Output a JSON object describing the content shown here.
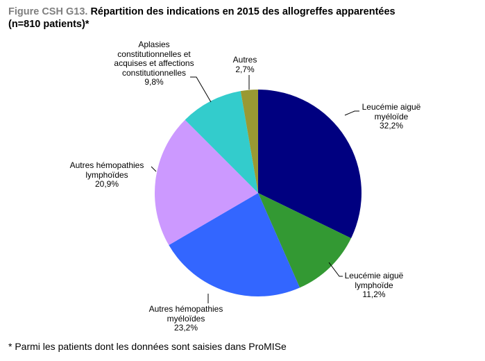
{
  "chart_data": {
    "type": "pie",
    "title_prefix": "Figure CSH G13.",
    "title": "Répartition des indications en 2015 des allogreffes apparentées",
    "subtitle": "(n=810 patients)*",
    "start": "top",
    "direction": "clockwise",
    "slices": [
      {
        "label_lines": [
          "Leucémie aiguë",
          "myéloïde"
        ],
        "value": 32.2,
        "value_label": "32,2%",
        "color": "#000080"
      },
      {
        "label_lines": [
          "Leucémie aiguë",
          "lymphoïde"
        ],
        "value": 11.2,
        "value_label": "11,2%",
        "color": "#339933"
      },
      {
        "label_lines": [
          "Autres hémopathies",
          "myéloïdes"
        ],
        "value": 23.2,
        "value_label": "23,2%",
        "color": "#3366FF"
      },
      {
        "label_lines": [
          "Autres hémopathies",
          "lymphoïdes"
        ],
        "value": 20.9,
        "value_label": "20,9%",
        "color": "#CC99FF"
      },
      {
        "label_lines": [
          "Aplasies",
          "constitutionnelles et",
          "acquises et affections",
          "constitutionnelles"
        ],
        "value": 9.8,
        "value_label": "9,8%",
        "color": "#33CCCC"
      },
      {
        "label_lines": [
          "Autres"
        ],
        "value": 2.7,
        "value_label": "2,7%",
        "color": "#999933"
      }
    ]
  },
  "footnote": "* Parmi les patients  dont les données sont saisies dans ProMISe"
}
